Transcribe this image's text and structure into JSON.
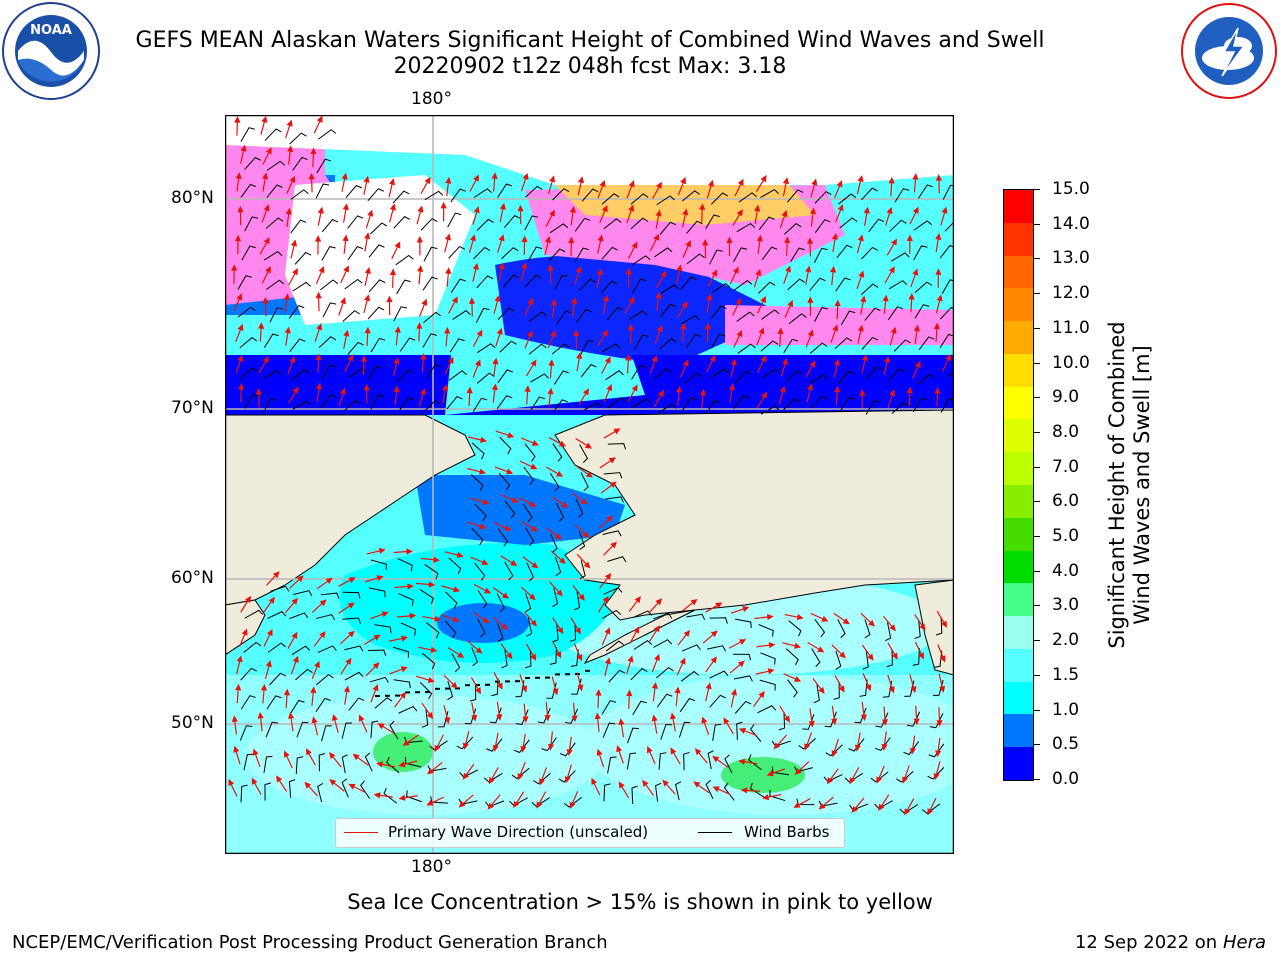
{
  "title": {
    "line1": "GEFS MEAN Alaskan Waters Significant Height of Combined Wind Waves and Swell",
    "line2": "20220902 t12z 048h fcst   Max: 3.18"
  },
  "logos": {
    "noaa": {
      "text": "NOAA",
      "ring_text": "NATIONAL OCEANIC AND ATMOSPHERIC ADMINISTRATION · U.S. DEPARTMENT OF COMMERCE"
    },
    "nws": {
      "ring_text": "NATIONAL WEATHER SERVICE"
    }
  },
  "map": {
    "lon_label_top": "180°",
    "lon_label_bottom": "180°",
    "lat_labels": [
      "80°N",
      "70°N",
      "60°N",
      "50°N"
    ],
    "legend": {
      "wave_direction": "Primary Wave Direction (unscaled)",
      "wind_barbs": "Wind Barbs"
    },
    "colors": {
      "land": "#efecdc",
      "wave_arrow": "#e8120c",
      "wind_barb": "#000000"
    }
  },
  "colorbar": {
    "label_line1": "Significant Height of Combined",
    "label_line2": "Wind Waves and Swell [m]",
    "ticks": [
      "15.0",
      "14.0",
      "13.0",
      "12.0",
      "11.0",
      "10.0",
      "9.0",
      "8.0",
      "7.0",
      "6.0",
      "5.0",
      "4.0",
      "3.0",
      "2.0",
      "1.5",
      "1.0",
      "0.5",
      "0.0"
    ],
    "colors": [
      "#ff0000",
      "#ff3300",
      "#ff6600",
      "#ff8800",
      "#ffaa00",
      "#ffdd00",
      "#ffff00",
      "#ddff00",
      "#bbff00",
      "#88ee00",
      "#44dd00",
      "#00dd00",
      "#44ff88",
      "#99ffee",
      "#55ffff",
      "#00ffff",
      "#0077ff",
      "#0000ff"
    ]
  },
  "footer": {
    "ice_note": "Sea Ice Concentration > 15% is shown in pink to yellow",
    "credit": "NCEP/EMC/Verification Post Processing Product Generation Branch",
    "date": "12 Sep 2022 on",
    "host": "Hera"
  }
}
